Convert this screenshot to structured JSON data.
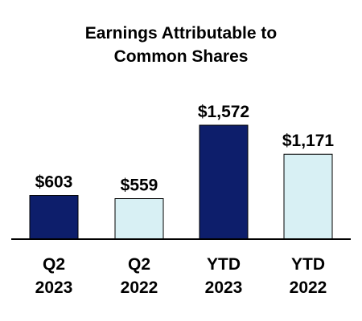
{
  "chart_data": {
    "type": "bar",
    "title_lines": [
      "Earnings Attributable to",
      "Common Shares"
    ],
    "categories": [
      [
        "Q2",
        "2023"
      ],
      [
        "Q2",
        "2022"
      ],
      [
        "YTD",
        "2023"
      ],
      [
        "YTD",
        "2022"
      ]
    ],
    "values": [
      603,
      559,
      1572,
      1171
    ],
    "value_labels": [
      "$603",
      "$559",
      "$1,572",
      "$1,171"
    ],
    "bar_colors": [
      "#0d1e6b",
      "#d8f0f4",
      "#0d1e6b",
      "#d8f0f4"
    ],
    "bar_stroke": "#000000",
    "ylim": [
      0,
      1572
    ],
    "grid": false,
    "legend": "none"
  }
}
